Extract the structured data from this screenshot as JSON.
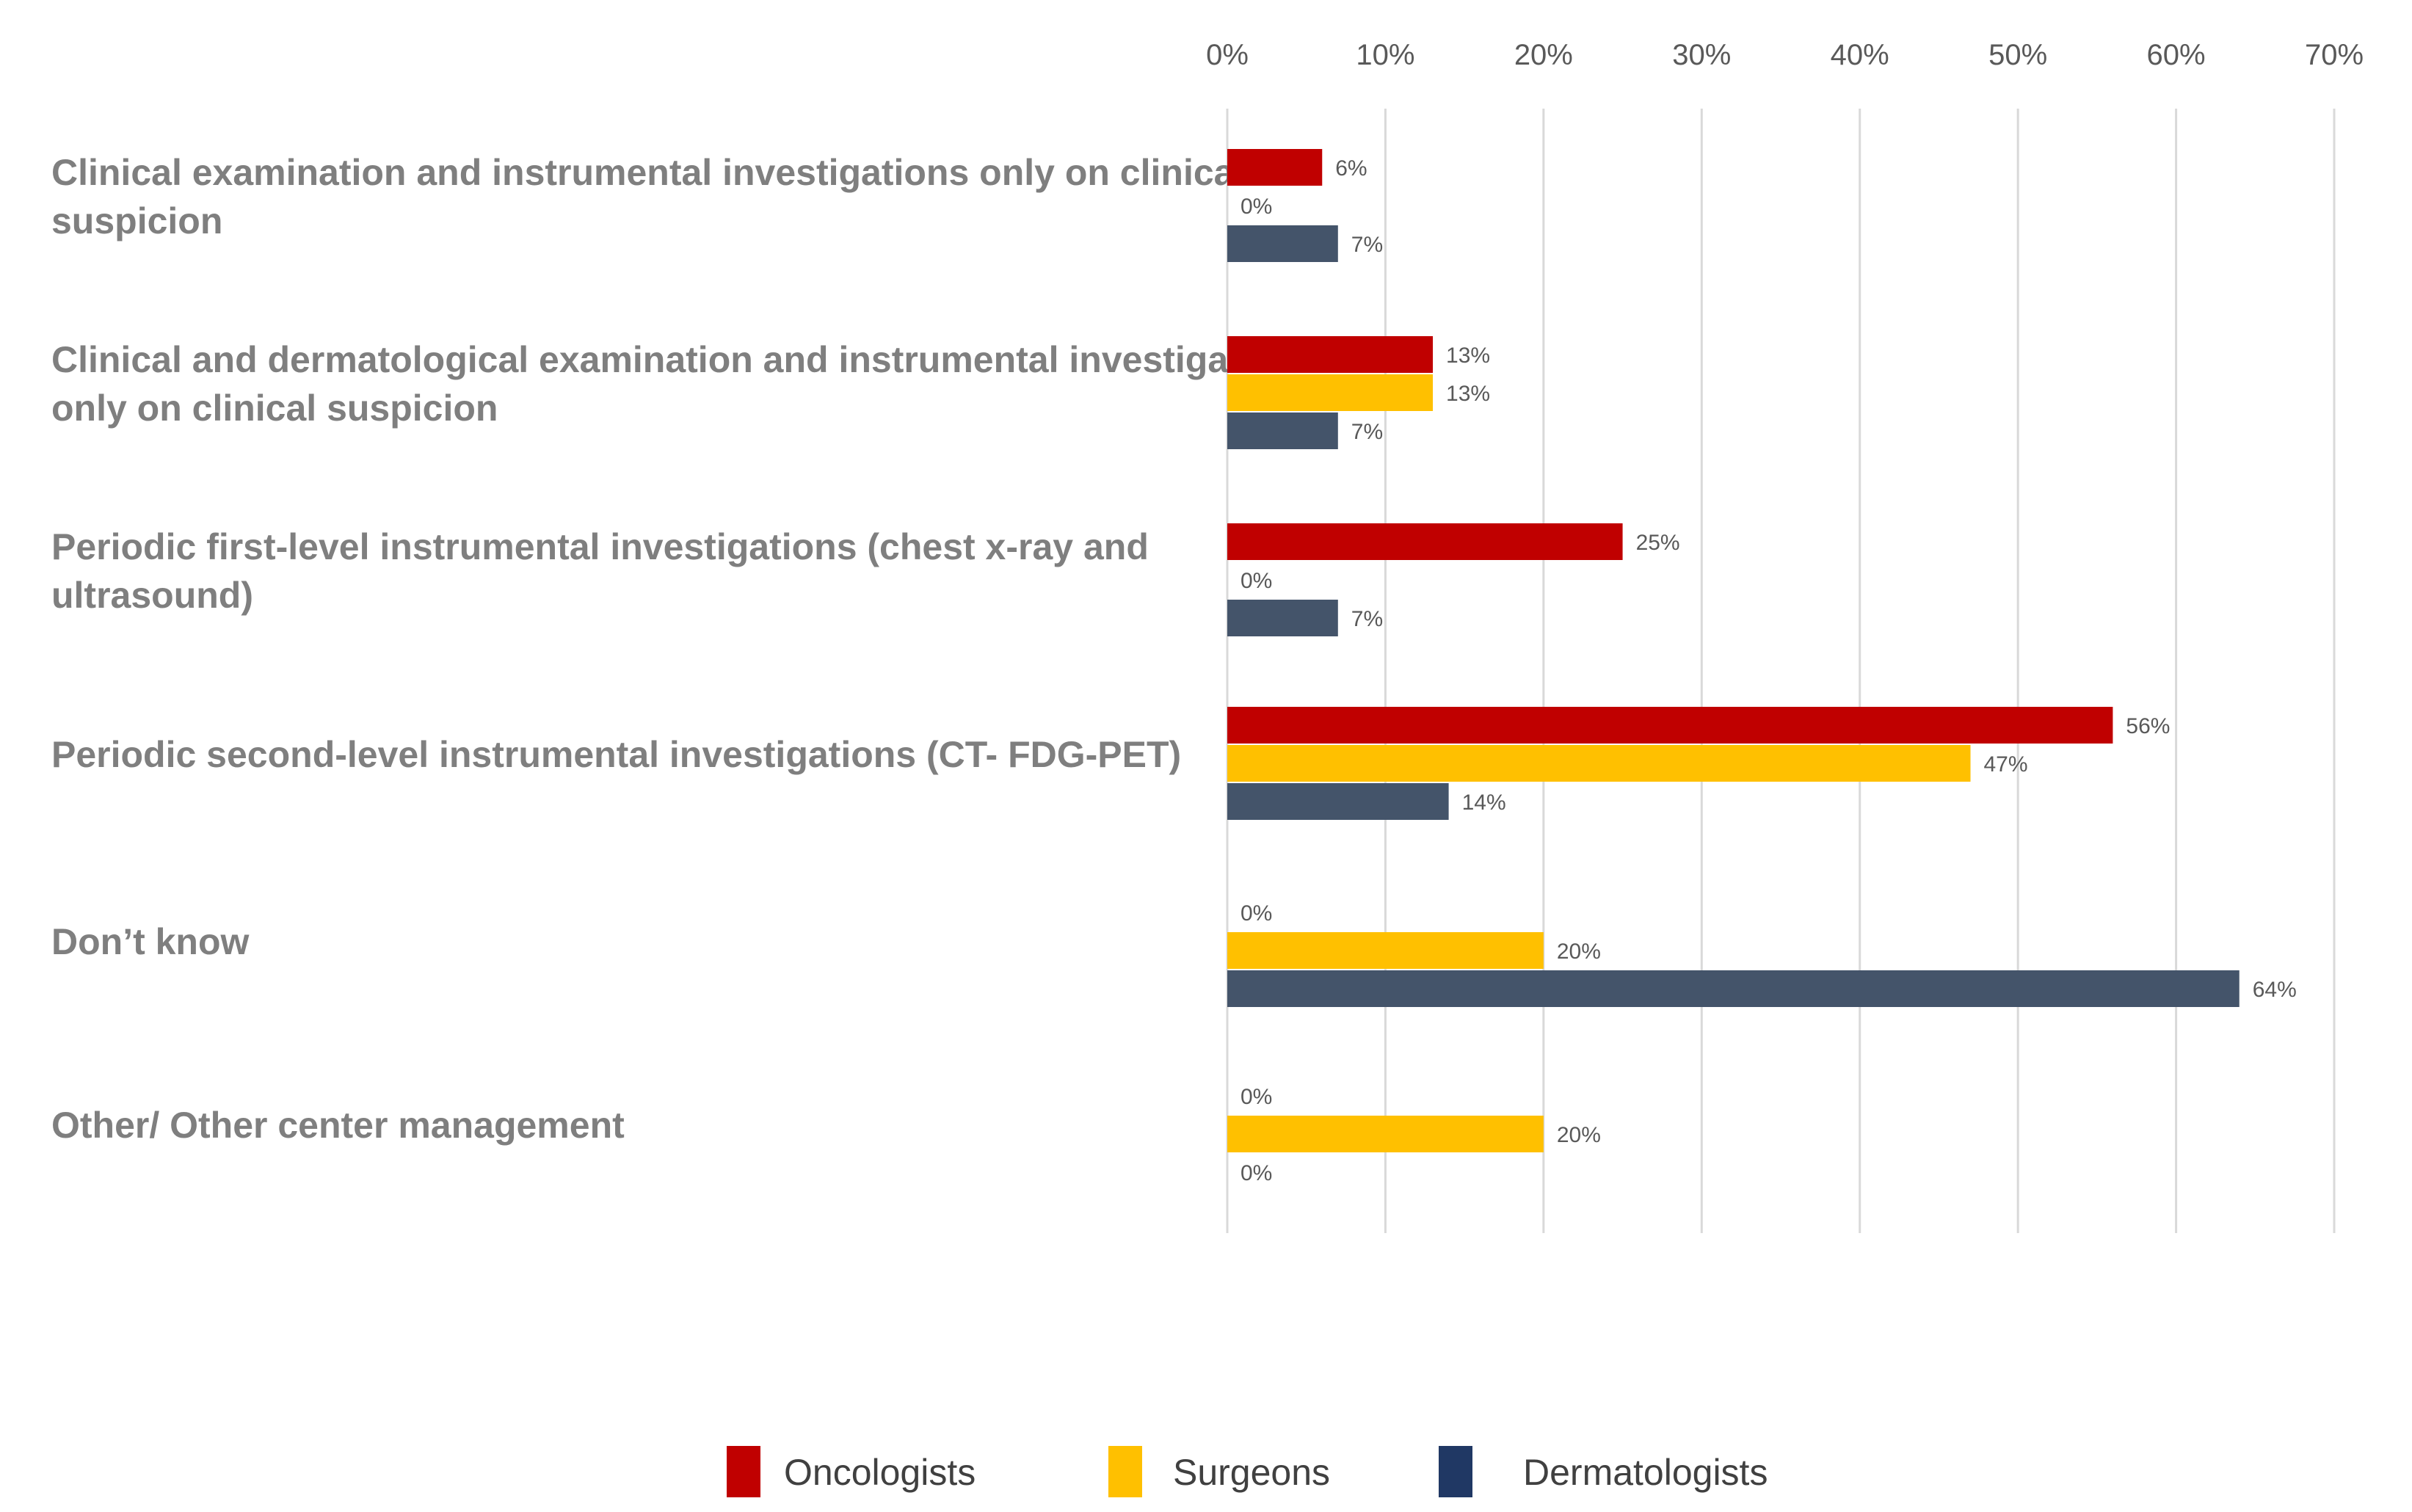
{
  "chart_data": {
    "type": "bar",
    "orientation": "horizontal",
    "categories": [
      [
        "Clinical examination and instrumental investigations only on clinical",
        "suspicion"
      ],
      [
        "Clinical and dermatological examination and instrumental investigations",
        "only on clinical suspicion"
      ],
      [
        "Periodic first-level instrumental investigations (chest x-ray and",
        "ultrasound)"
      ],
      [
        "Periodic second-level instrumental investigations (CT- FDG-PET)"
      ],
      [
        "Don’t know"
      ],
      [
        "Other/ Other center management"
      ]
    ],
    "series": [
      {
        "name": "Oncologists",
        "color": "#c00000",
        "values": [
          6,
          13,
          25,
          56,
          0,
          0
        ]
      },
      {
        "name": "Surgeons",
        "color": "#ffc000",
        "values": [
          0,
          13,
          0,
          47,
          20,
          20
        ]
      },
      {
        "name": "Dermatologists",
        "color": "#44546a",
        "values": [
          7,
          7,
          7,
          14,
          64,
          0
        ]
      }
    ],
    "value_suffix": "%",
    "xlim": [
      0,
      70
    ],
    "x_ticks": [
      "0%",
      "10%",
      "20%",
      "30%",
      "40%",
      "50%",
      "60%",
      "70%"
    ],
    "x_axis_position": "top",
    "grid": true,
    "legend_position": "bottom",
    "legend_marker_colors": [
      "#c00000",
      "#ffc000",
      "#203864"
    ]
  }
}
